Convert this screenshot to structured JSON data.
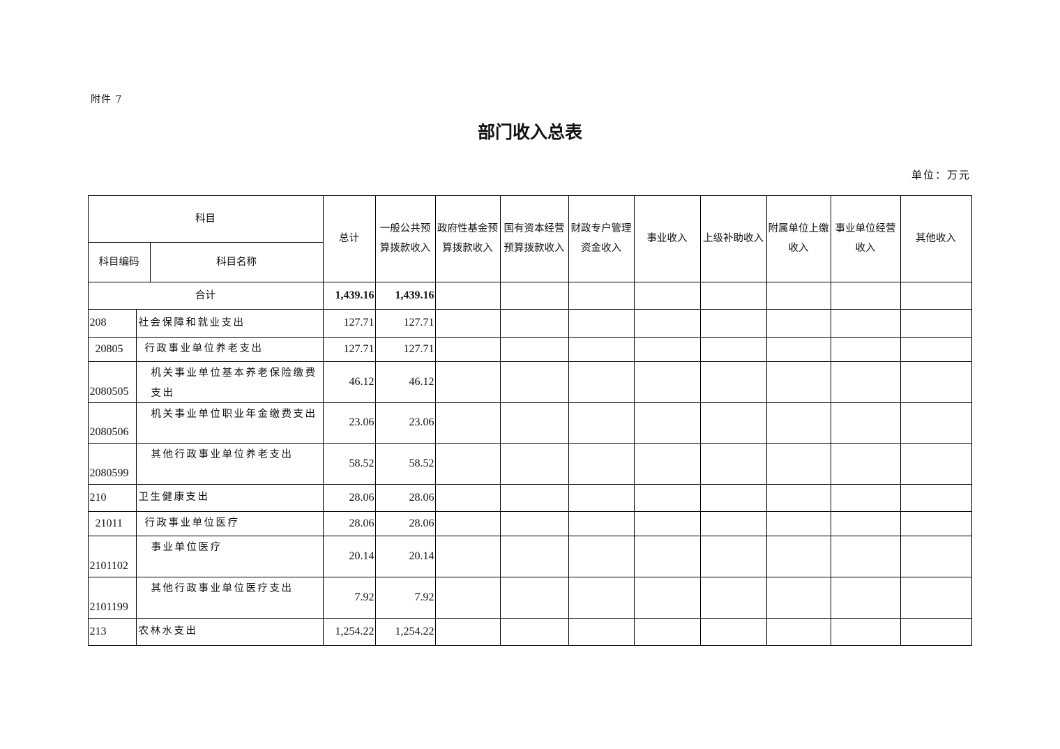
{
  "attachment": "附件 7",
  "title": "部门收入总表",
  "unit": "单位：万元",
  "header": {
    "subject": "科目",
    "subject_code": "科目编码",
    "subject_name": "科目名称",
    "columns": [
      "总计",
      "一般公共预算拨款收入",
      "政府性基金预算拨款收入",
      "国有资本经营预算拨款收入",
      "财政专户管理资金收入",
      "事业收入",
      "上级补助收入",
      "附属单位上缴收入",
      "事业单位经营收入",
      "其他收入"
    ]
  },
  "total_row": {
    "label": "合计",
    "values": [
      "1,439.16",
      "1,439.16",
      "",
      "",
      "",
      "",
      "",
      "",
      "",
      ""
    ]
  },
  "rows": [
    {
      "code": "208",
      "name": "社会保障和就业支出",
      "values": [
        "127.71",
        "127.71",
        "",
        "",
        "",
        "",
        "",
        "",
        "",
        ""
      ]
    },
    {
      "code": "20805",
      "name": "行政事业单位养老支出",
      "values": [
        "127.71",
        "127.71",
        "",
        "",
        "",
        "",
        "",
        "",
        "",
        ""
      ]
    },
    {
      "code": "2080505",
      "name": "机关事业单位基本养老保险缴费支出",
      "values": [
        "46.12",
        "46.12",
        "",
        "",
        "",
        "",
        "",
        "",
        "",
        ""
      ]
    },
    {
      "code": "2080506",
      "name": "机关事业单位职业年金缴费支出",
      "values": [
        "23.06",
        "23.06",
        "",
        "",
        "",
        "",
        "",
        "",
        "",
        ""
      ]
    },
    {
      "code": "2080599",
      "name": "其他行政事业单位养老支出",
      "values": [
        "58.52",
        "58.52",
        "",
        "",
        "",
        "",
        "",
        "",
        "",
        ""
      ]
    },
    {
      "code": "210",
      "name": "卫生健康支出",
      "values": [
        "28.06",
        "28.06",
        "",
        "",
        "",
        "",
        "",
        "",
        "",
        ""
      ]
    },
    {
      "code": "21011",
      "name": "行政事业单位医疗",
      "values": [
        "28.06",
        "28.06",
        "",
        "",
        "",
        "",
        "",
        "",
        "",
        ""
      ]
    },
    {
      "code": "2101102",
      "name": "事业单位医疗",
      "values": [
        "20.14",
        "20.14",
        "",
        "",
        "",
        "",
        "",
        "",
        "",
        ""
      ]
    },
    {
      "code": "2101199",
      "name": "其他行政事业单位医疗支出",
      "values": [
        "7.92",
        "7.92",
        "",
        "",
        "",
        "",
        "",
        "",
        "",
        ""
      ]
    },
    {
      "code": "213",
      "name": "农林水支出",
      "values": [
        "1,254.22",
        "1,254.22",
        "",
        "",
        "",
        "",
        "",
        "",
        "",
        ""
      ]
    }
  ]
}
